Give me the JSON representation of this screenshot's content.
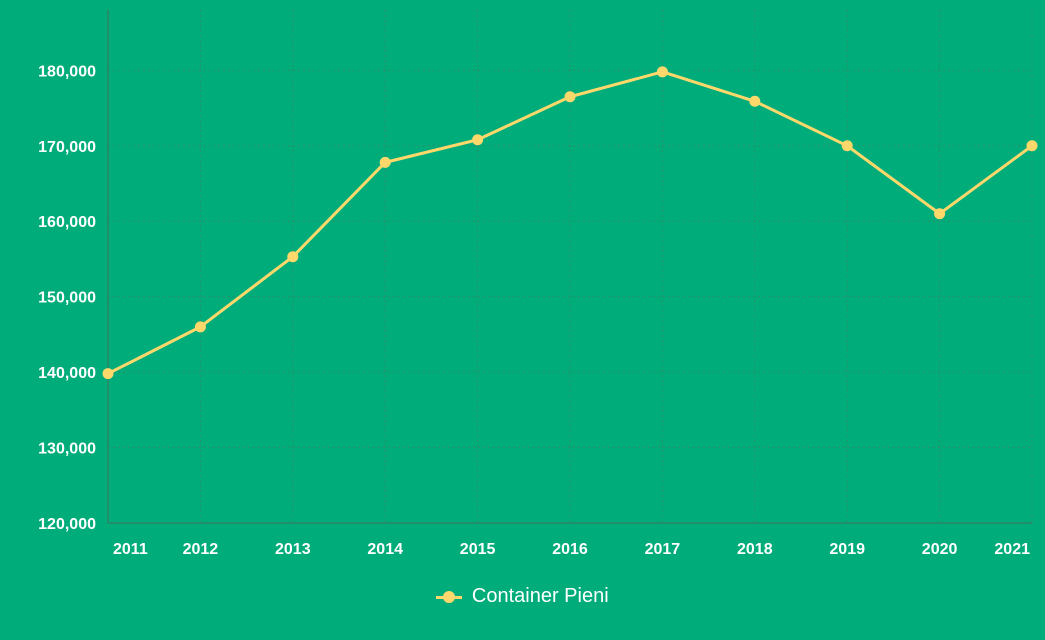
{
  "chart_data": {
    "type": "line",
    "title": "",
    "xlabel": "",
    "ylabel": "",
    "categories": [
      "2011",
      "2012",
      "2013",
      "2014",
      "2015",
      "2016",
      "2017",
      "2018",
      "2019",
      "2020",
      "2021"
    ],
    "series": [
      {
        "name": "Container Pieni",
        "values": [
          139800,
          146000,
          155300,
          167800,
          170800,
          176500,
          179800,
          175900,
          170000,
          161000,
          170000
        ]
      }
    ],
    "ylim": [
      120000,
      188000
    ],
    "yticks": [
      "120,000",
      "130,000",
      "140,000",
      "150,000",
      "160,000",
      "170,000",
      "180,000"
    ],
    "grid": true,
    "legend_position": "bottom-center",
    "colors": {
      "background": "#00ad7a",
      "series": "#ffd86b",
      "text": "#ffffff",
      "grid": "#2a8f6a"
    }
  }
}
